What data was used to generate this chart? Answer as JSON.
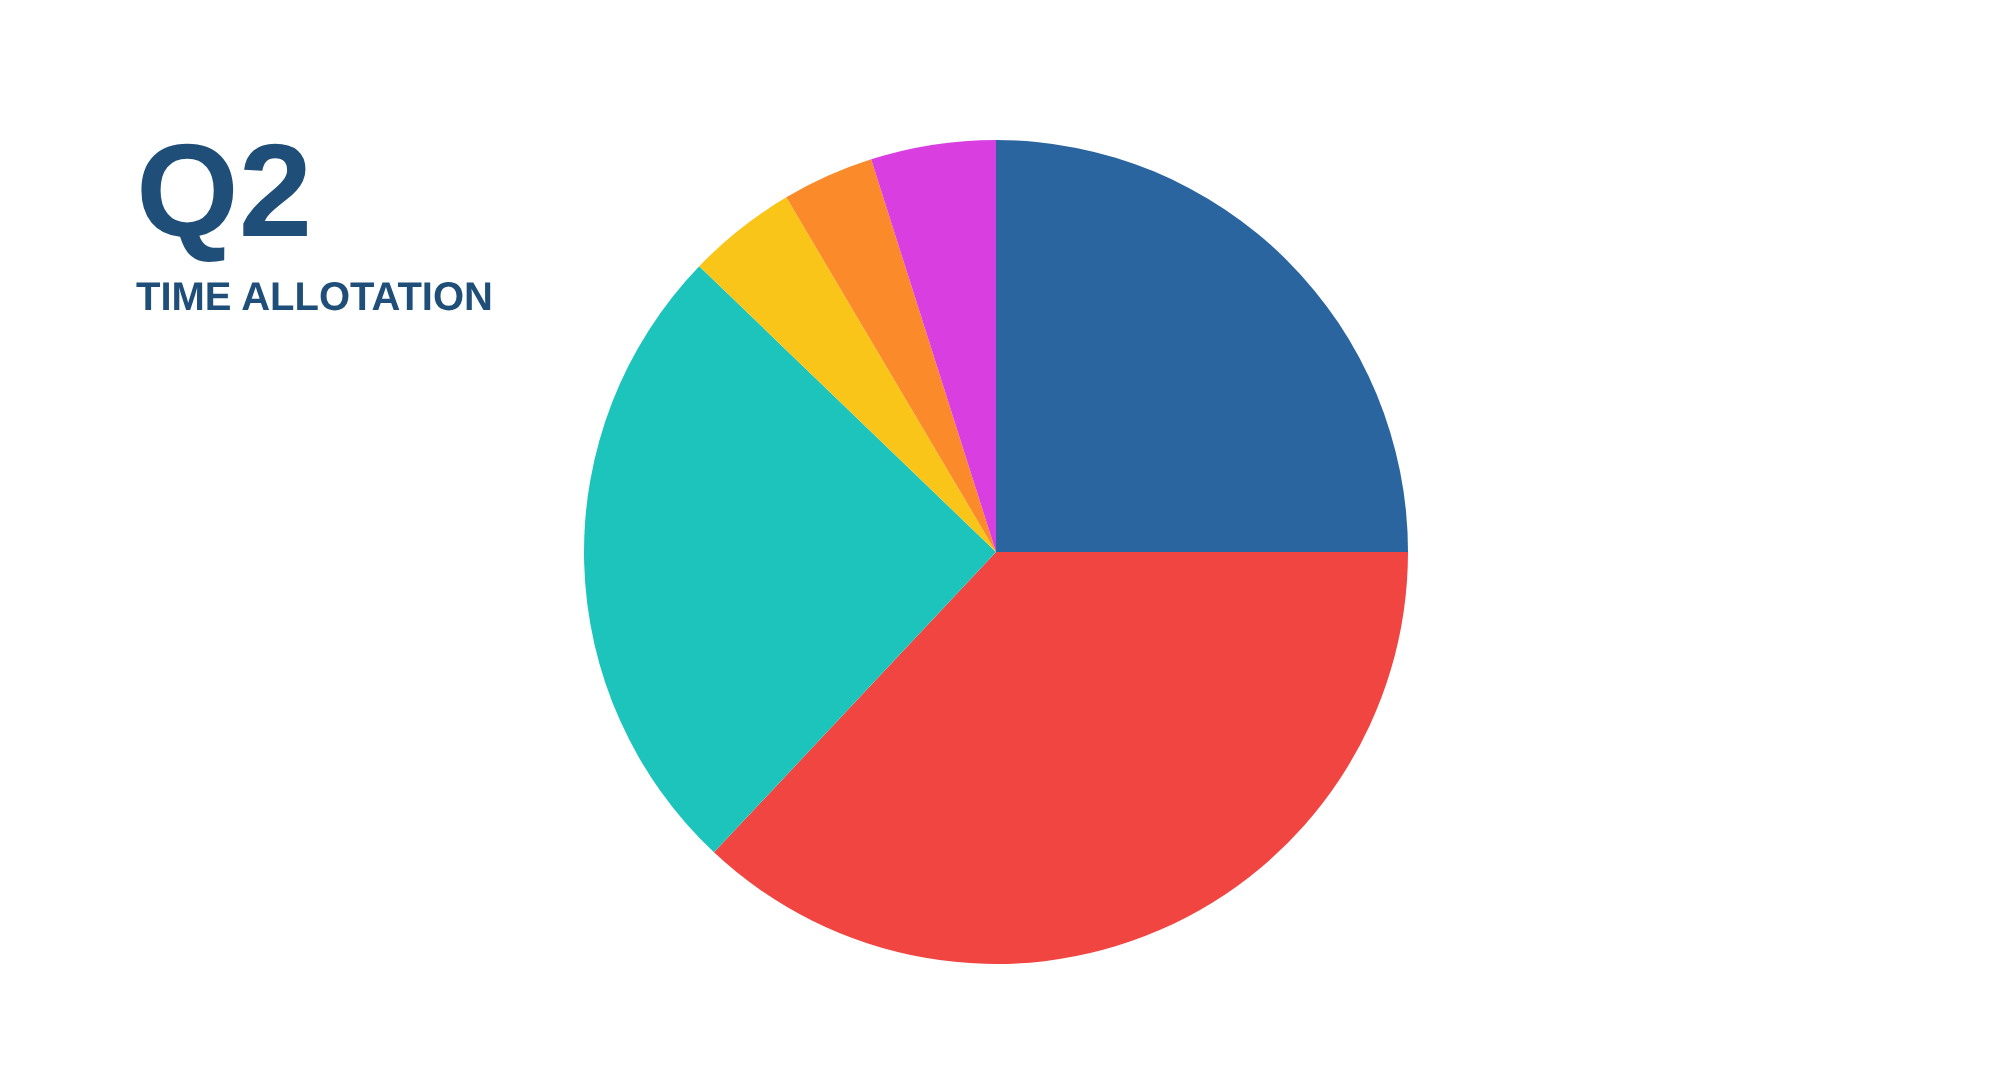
{
  "chart_data": {
    "type": "pie",
    "title": "Q2",
    "subtitle": "TIME ALLOTATION",
    "categories": [
      null,
      null,
      null,
      null,
      null,
      null
    ],
    "values": [
      25,
      37,
      25.2,
      4.3,
      3.6,
      4.9
    ],
    "colors": [
      "#2a65a0",
      "#f04540",
      "#1dc4bc",
      "#f9c518",
      "#fb8a2a",
      "#d93ee0"
    ]
  }
}
